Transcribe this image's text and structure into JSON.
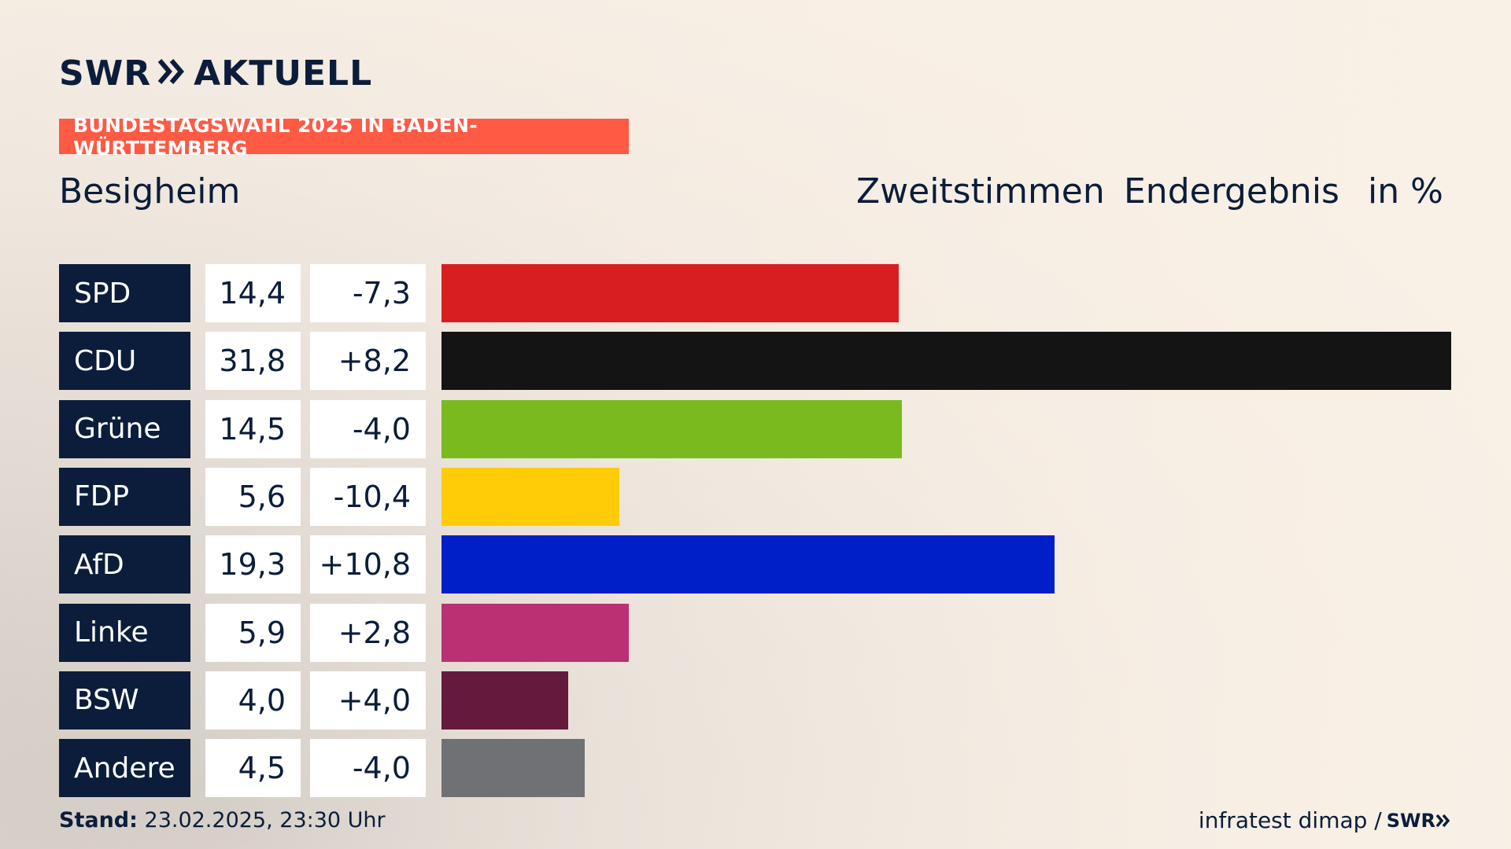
{
  "brand": {
    "logo_left": "SWR",
    "logo_right": "AKTUELL"
  },
  "tag": "BUNDESTAGSWAHL 2025 IN BADEN-WÜRTTEMBERG",
  "title": "Besigheim",
  "header": {
    "vote_type": "Zweitstimmen",
    "status": "Endergebnis",
    "unit": "in %"
  },
  "footer": {
    "stand_label": "Stand:",
    "stand_value": "23.02.2025, 23:30 Uhr",
    "source": "infratest dimap /",
    "source_logo": "SWR"
  },
  "chart_data": {
    "type": "bar",
    "orientation": "horizontal",
    "categories": [
      "SPD",
      "CDU",
      "Grüne",
      "FDP",
      "AfD",
      "Linke",
      "BSW",
      "Andere"
    ],
    "values": [
      14.4,
      31.8,
      14.5,
      5.6,
      19.3,
      5.9,
      4.0,
      4.5
    ],
    "value_labels": [
      "14,4",
      "31,8",
      "14,5",
      "5,6",
      "19,3",
      "5,9",
      "4,0",
      "4,5"
    ],
    "diff_labels": [
      "-7,3",
      "+8,2",
      "-4,0",
      "-10,4",
      "+10,8",
      "+2,8",
      "+4,0",
      "-4,0"
    ],
    "colors": [
      "#d81e20",
      "#141414",
      "#7aba1f",
      "#ffcc07",
      "#001fc8",
      "#bb3072",
      "#651a3d",
      "#707174"
    ]
  }
}
